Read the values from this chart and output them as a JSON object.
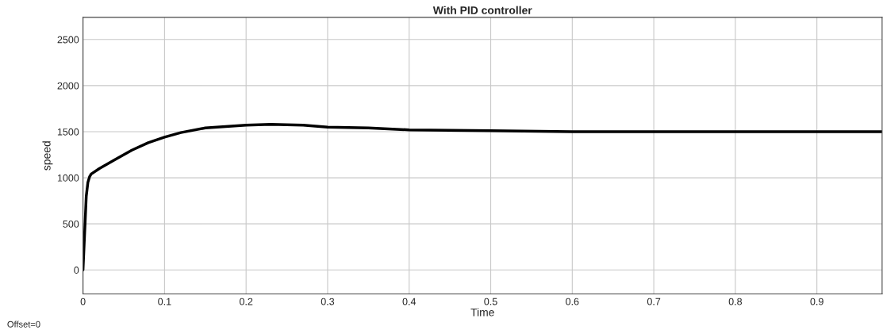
{
  "chart_data": {
    "type": "line",
    "title": "With PID controller",
    "xlabel": "Time",
    "ylabel": "speed",
    "annotations": [
      "Offset=0"
    ],
    "series": [
      {
        "color": "#000000",
        "x": [
          0,
          0.002,
          0.004,
          0.006,
          0.008,
          0.01,
          0.02,
          0.04,
          0.06,
          0.08,
          0.1,
          0.12,
          0.15,
          0.2,
          0.23,
          0.27,
          0.3,
          0.35,
          0.4,
          0.5,
          0.6,
          0.8,
          0.98
        ],
        "values": [
          0,
          400,
          800,
          950,
          1010,
          1040,
          1100,
          1200,
          1300,
          1380,
          1440,
          1490,
          1540,
          1570,
          1580,
          1570,
          1550,
          1540,
          1520,
          1510,
          1500,
          1500,
          1500
        ]
      }
    ],
    "xlim": [
      0,
      0.98
    ],
    "xticks": [
      0,
      0.1,
      0.2,
      0.3,
      0.4,
      0.5,
      0.6,
      0.7,
      0.8,
      0.9
    ],
    "ylim": [
      -260,
      2740
    ],
    "yticks": [
      0,
      500,
      1000,
      1500,
      2000,
      2500
    ],
    "grid": true,
    "line_style": "solid",
    "marker": "none"
  }
}
